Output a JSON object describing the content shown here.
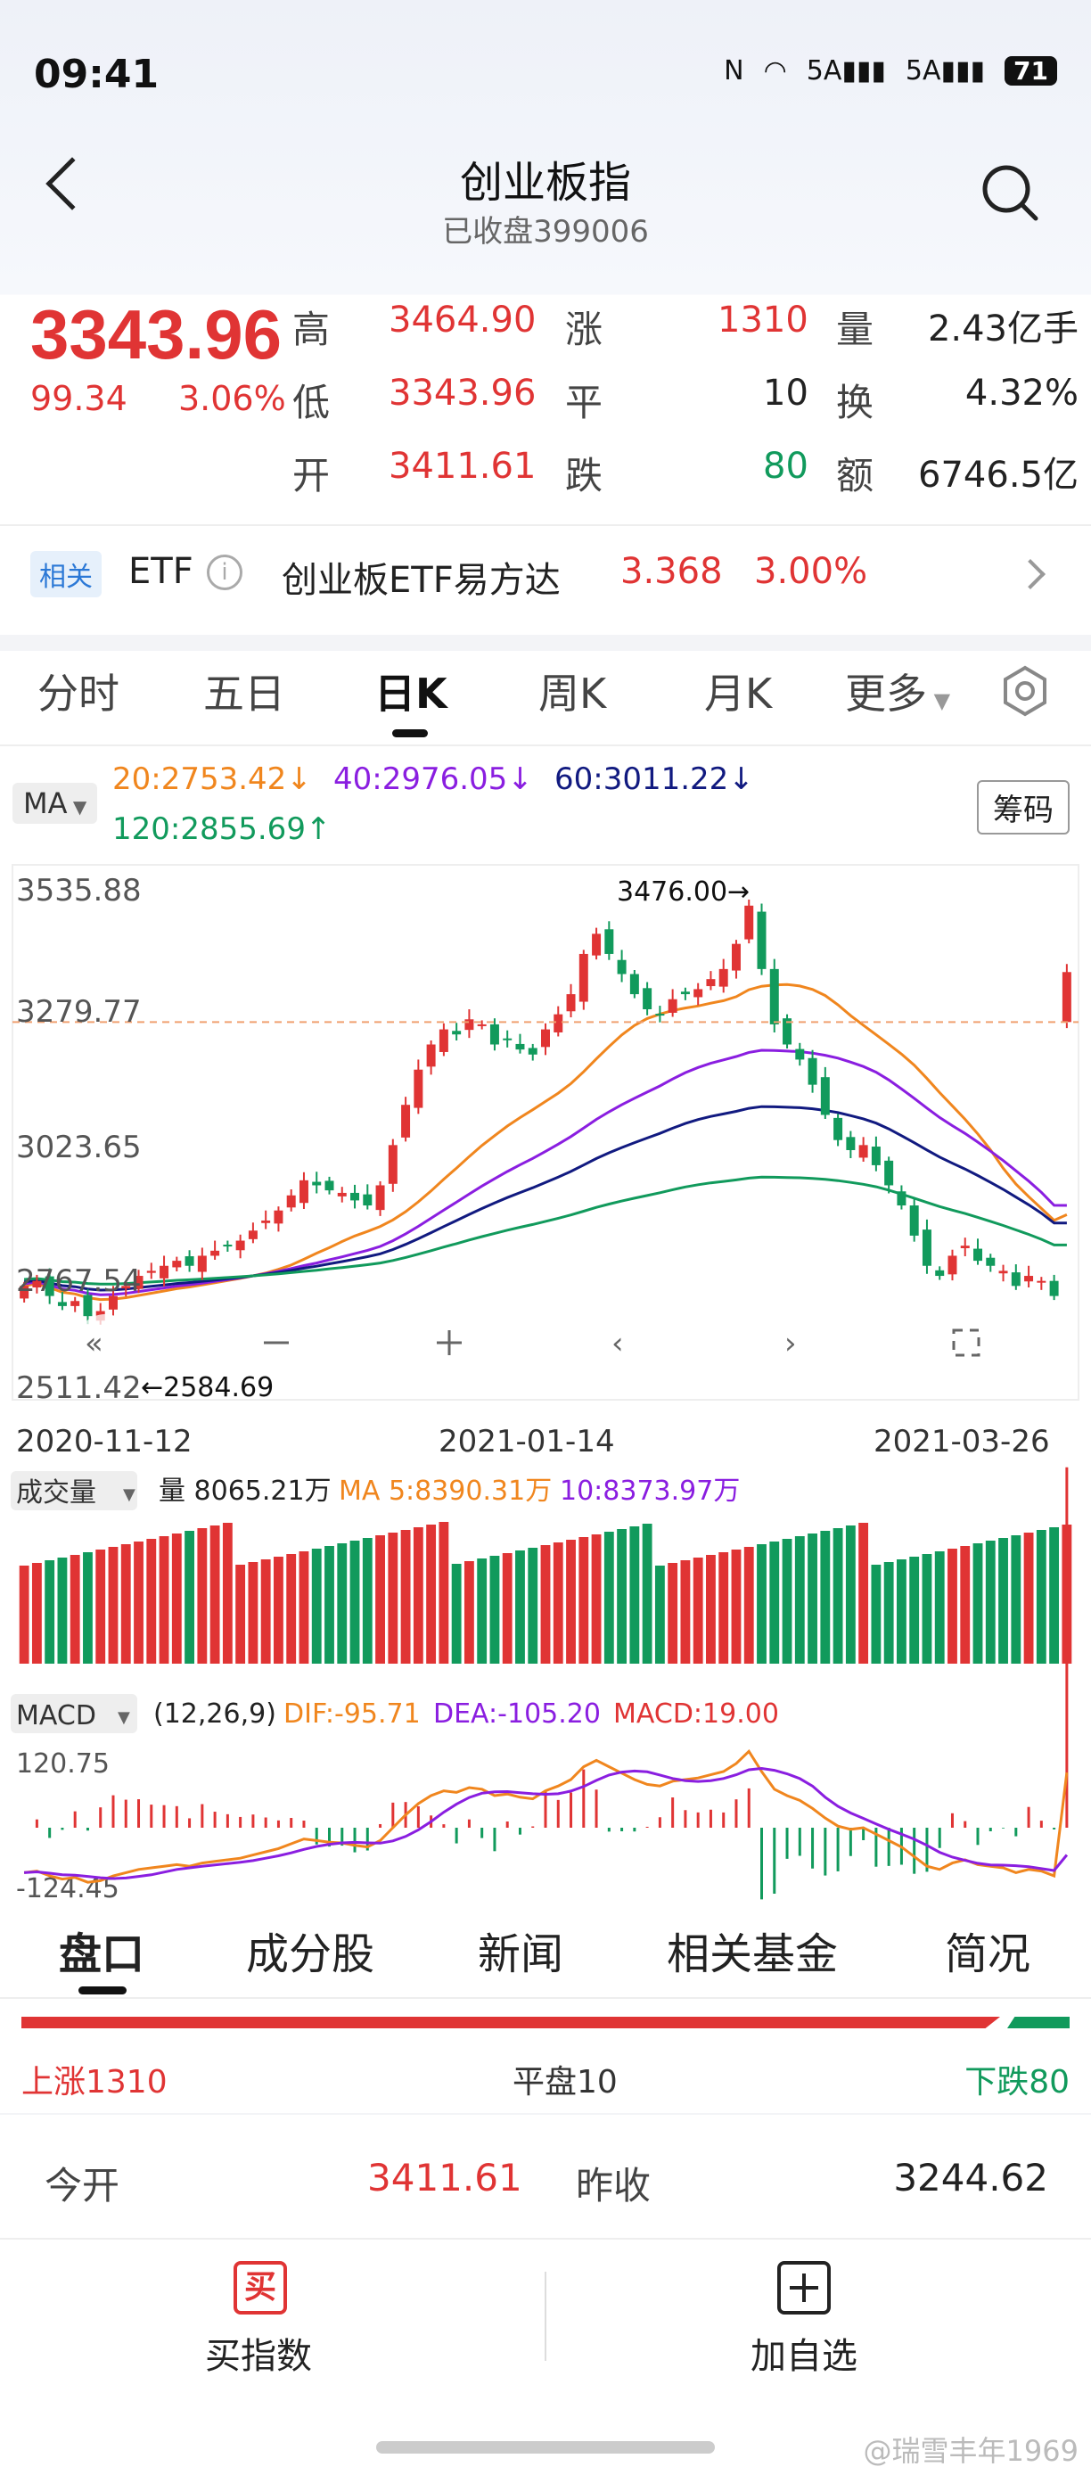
{
  "status_bar": {
    "time": "09:41",
    "signal1": "5A",
    "signal2": "5A",
    "battery": "71"
  },
  "header": {
    "title": "创业板指",
    "subtitle": "已收盘399006"
  },
  "quote": {
    "price": "3343.96",
    "change": "99.34",
    "change_pct": "3.06%",
    "stats": [
      {
        "label": "高",
        "value": "3464.90",
        "color": "red"
      },
      {
        "label": "低",
        "value": "3343.96",
        "color": "red"
      },
      {
        "label": "开",
        "value": "3411.61",
        "color": "red"
      },
      {
        "label": "涨",
        "value": "1310",
        "color": "red"
      },
      {
        "label": "平",
        "value": "10",
        "color": "dark"
      },
      {
        "label": "跌",
        "value": "80",
        "color": "green"
      },
      {
        "label": "量",
        "value": "2.43亿手",
        "color": "dark"
      },
      {
        "label": "换",
        "value": "4.32%",
        "color": "dark"
      },
      {
        "label": "额",
        "value": "6746.5亿",
        "color": "dark"
      }
    ]
  },
  "related": {
    "tag": "相关",
    "type": "ETF",
    "info_icon": "i",
    "name": "创业板ETF易方达",
    "price": "3.368",
    "pct": "3.00%"
  },
  "tabs": [
    "分时",
    "五日",
    "日K",
    "周K",
    "月K",
    "更多"
  ],
  "active_tab": "日K",
  "ma": {
    "button": "MA",
    "ma20": "20:2753.42↓",
    "ma40": "40:2976.05↓",
    "ma60": "60:3011.22↓",
    "ma120": "120:2855.69↑",
    "chips_button": "筹码"
  },
  "chart_data": {
    "type": "candlestick",
    "y_ticks": [
      "3535.88",
      "3279.77",
      "3023.65",
      "2767.54",
      "2511.42"
    ],
    "ylim": [
      2511.42,
      3535.88
    ],
    "x_ticks": [
      "2020-11-12",
      "2021-01-14",
      "2021-03-26"
    ],
    "max_label": "3476.00→",
    "min_label": "←2584.69",
    "reference_price": 3244.62,
    "volume": {
      "button": "成交量",
      "vol": "量 8065.21万",
      "ma5": "MA 5:8390.31万",
      "ma10": "10:8373.97万"
    },
    "macd": {
      "button": "MACD",
      "params": "(12,26,9)",
      "dif": "DIF:-95.71",
      "dea": "DEA:-105.20",
      "macd": "MACD:19.00",
      "ymax": "120.75",
      "ymin": "-124.45"
    },
    "closes": [
      2720,
      2730,
      2700,
      2680,
      2690,
      2660,
      2670,
      2700,
      2720,
      2740,
      2750,
      2760,
      2770,
      2760,
      2780,
      2790,
      2800,
      2810,
      2830,
      2850,
      2870,
      2900,
      2930,
      2920,
      2910,
      2905,
      2890,
      2880,
      2920,
      3000,
      3080,
      3150,
      3200,
      3230,
      3220,
      3250,
      3240,
      3200,
      3210,
      3190,
      3180,
      3230,
      3260,
      3300,
      3380,
      3420,
      3380,
      3340,
      3300,
      3270,
      3260,
      3290,
      3300,
      3310,
      3330,
      3350,
      3400,
      3476,
      3350,
      3240,
      3200,
      3170,
      3120,
      3060,
      3010,
      2990,
      3000,
      2960,
      2920,
      2880,
      2820,
      2760,
      2740,
      2780,
      2800,
      2770,
      2760,
      2750,
      2720,
      2740,
      2730,
      2700,
      3343.96
    ]
  },
  "bottom_tabs": [
    "盘口",
    "成分股",
    "新闻",
    "相关基金",
    "简况"
  ],
  "breadth": {
    "up": "上涨1310",
    "flat": "平盘10",
    "down": "下跌80",
    "up_ratio": 0.942
  },
  "summary": {
    "open_label": "今开",
    "open_value": "3411.61",
    "prev_label": "昨收",
    "prev_value": "3244.62"
  },
  "actions": {
    "buy_icon": "买",
    "buy_label": "买指数",
    "fav_label": "加自选"
  },
  "watermark": "@瑞雪丰年1969"
}
